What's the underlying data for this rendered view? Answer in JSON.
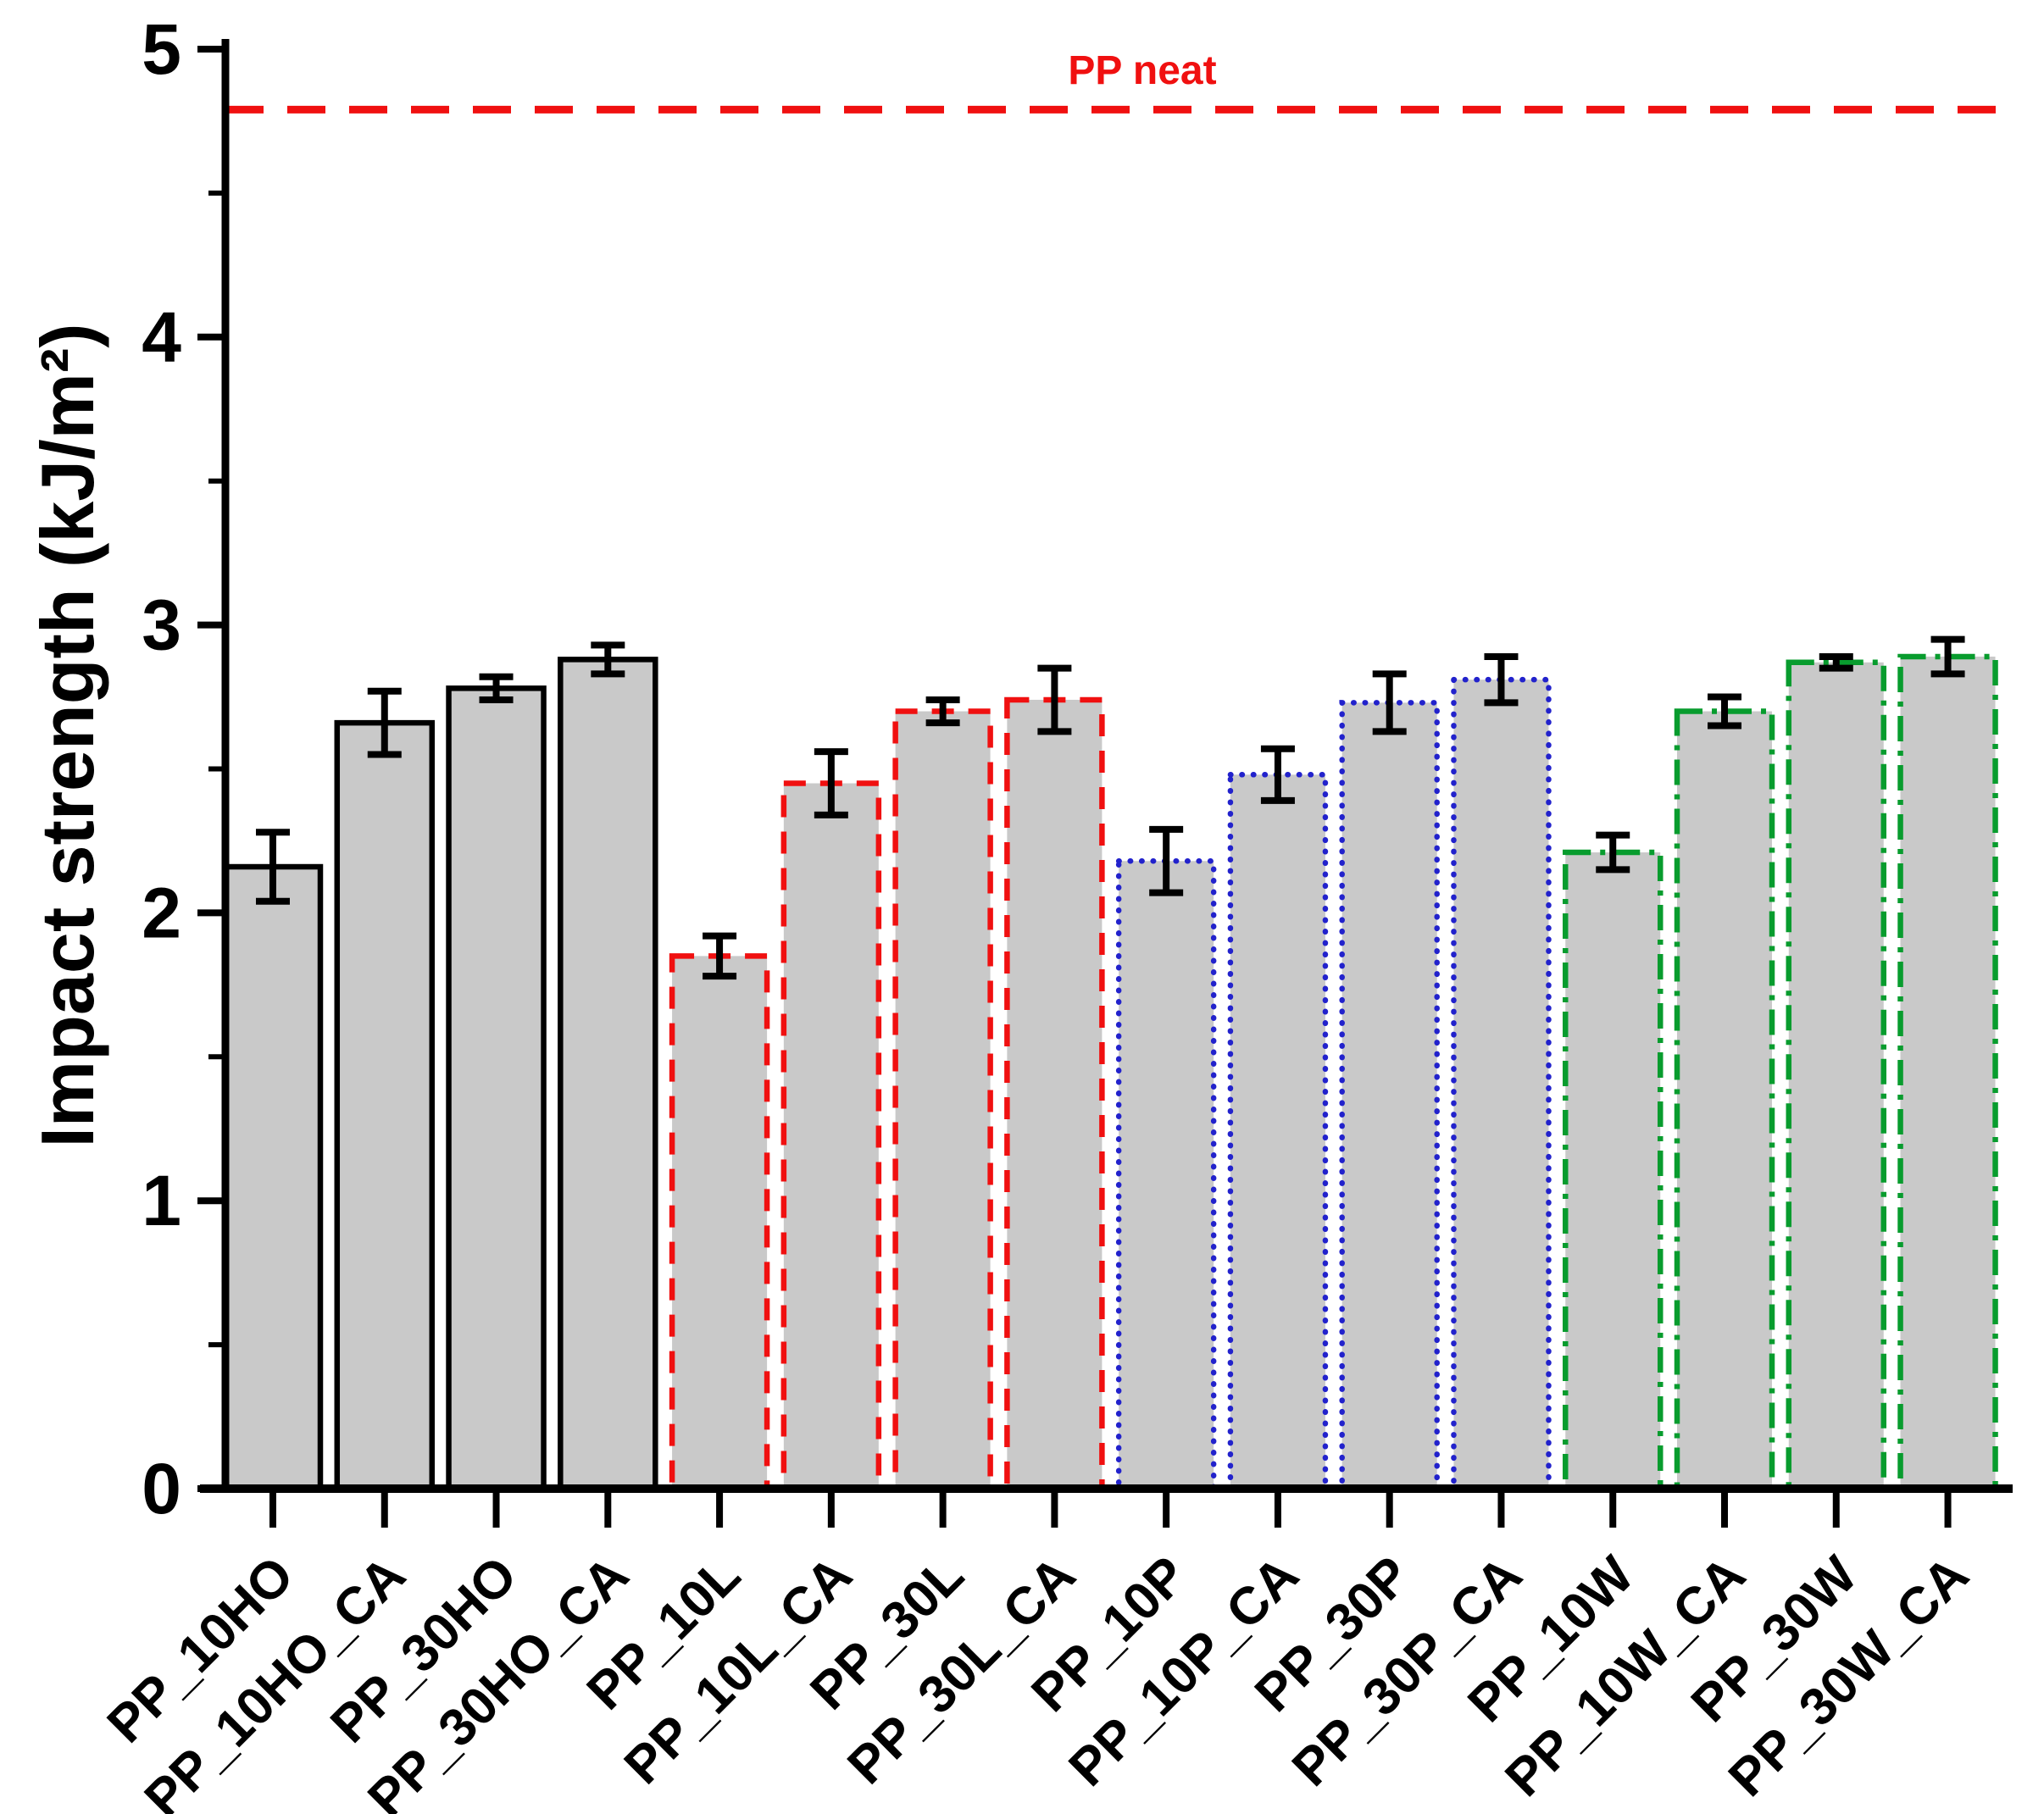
{
  "chart_data": {
    "type": "bar",
    "title": "",
    "ylabel": "Impact strength (kJ/m²)",
    "xlabel": "",
    "ylim": [
      0,
      5
    ],
    "yticks": [
      0,
      1,
      2,
      3,
      4,
      5
    ],
    "minor_tick_step": 0.5,
    "grid": "off",
    "legend": "none",
    "bar_fill": "#c9c9c9",
    "error_bar_color": "#000000",
    "reference_line": {
      "label": "PP neat",
      "value": 4.79,
      "color": "#f01010",
      "style": "dashed"
    },
    "groups": [
      {
        "name": "HO",
        "border_color": "#000000",
        "border_style": "solid"
      },
      {
        "name": "L",
        "border_color": "#f01010",
        "border_style": "dashed"
      },
      {
        "name": "P",
        "border_color": "#2222cc",
        "border_style": "dotted"
      },
      {
        "name": "W",
        "border_color": "#089c2e",
        "border_style": "dashdot"
      }
    ],
    "categories": [
      "PP_10HO",
      "PP_10HO_CA",
      "PP_30HO",
      "PP_30HO_CA",
      "PP_10L",
      "PP_10L_CA",
      "PP_30L",
      "PP_30L_CA",
      "PP_10P",
      "PP_10P_CA",
      "PP_30P",
      "PP_30P_CA",
      "PP_10W",
      "PP_10W_CA",
      "PP_30W",
      "PP_30W_CA"
    ],
    "group_index": [
      0,
      0,
      0,
      0,
      1,
      1,
      1,
      1,
      2,
      2,
      2,
      2,
      3,
      3,
      3,
      3
    ],
    "values": [
      2.16,
      2.66,
      2.78,
      2.88,
      1.85,
      2.45,
      2.7,
      2.74,
      2.18,
      2.48,
      2.73,
      2.81,
      2.21,
      2.7,
      2.87,
      2.89
    ],
    "errors": [
      0.12,
      0.11,
      0.04,
      0.05,
      0.07,
      0.11,
      0.04,
      0.11,
      0.11,
      0.09,
      0.1,
      0.08,
      0.06,
      0.05,
      0.02,
      0.06
    ]
  }
}
